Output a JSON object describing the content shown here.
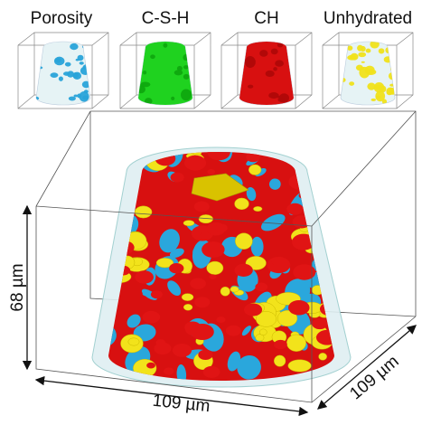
{
  "panels": [
    {
      "label": "Porosity"
    },
    {
      "label": "C-S-H"
    },
    {
      "label": "CH"
    },
    {
      "label": "Unhydrated"
    }
  ],
  "dimensions": {
    "height": "68 µm",
    "width": "109 µm",
    "depth": "109 µm"
  }
}
